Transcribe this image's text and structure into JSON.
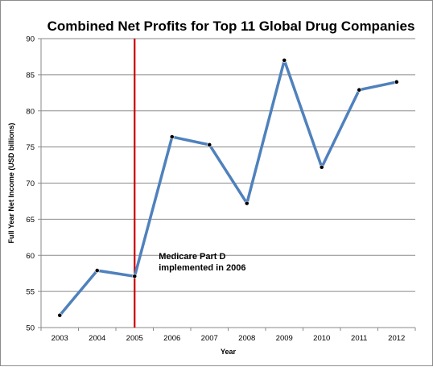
{
  "chart_data": {
    "type": "line",
    "title": "Combined Net Profits for Top 11 Global Drug Companies",
    "xlabel": "Year",
    "ylabel": "Full Year Net Income (USD billions)",
    "x": [
      "2003",
      "2004",
      "2005",
      "2006",
      "2007",
      "2008",
      "2009",
      "2010",
      "2011",
      "2012"
    ],
    "series": [
      {
        "values": [
          51.7,
          57.9,
          57.1,
          76.4,
          75.3,
          67.2,
          87.0,
          72.2,
          82.9,
          84.0
        ]
      }
    ],
    "ylim": [
      50,
      90
    ],
    "yticks": [
      50,
      55,
      60,
      65,
      70,
      75,
      80,
      85,
      90
    ],
    "grid": "horizontal",
    "line_color": "#4f81bd",
    "marker_color": "#000000",
    "marker_line_year": "2005",
    "marker_line_color": "#cc0000",
    "annotation": {
      "lines": [
        "Medicare Part D",
        "implemented in 2006"
      ],
      "anchor_year": "2005",
      "anchor_value": 59
    }
  }
}
